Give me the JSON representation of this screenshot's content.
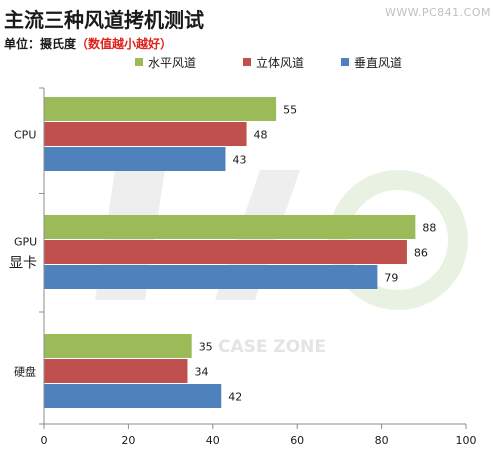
{
  "header": {
    "title": "主流三种风道拷机测试",
    "watermark_url": "WWW.PC841.COM",
    "subtitle_prefix": "单位：摄氏度",
    "subtitle_note": "（数值越小越好）"
  },
  "watermark": {
    "text": "CASE ZONE"
  },
  "colors": {
    "horizontal": "#9bbb59",
    "vertical": "#c0504d",
    "topdown": "#4f81bd",
    "subtitle_note": "#e0201b"
  },
  "chart_data": {
    "type": "bar",
    "orientation": "horizontal",
    "title": "主流三种风道拷机测试",
    "subtitle": "单位：摄氏度（数值越小越好）",
    "categories": [
      "CPU",
      "GPU\n显卡",
      "硬盘"
    ],
    "series": [
      {
        "name": "水平风道",
        "color": "#9bbb59",
        "values": [
          55,
          88,
          35
        ]
      },
      {
        "name": "立体风道",
        "color": "#c0504d",
        "values": [
          48,
          86,
          34
        ]
      },
      {
        "name": "垂直风道",
        "color": "#4f81bd",
        "values": [
          43,
          79,
          42
        ]
      }
    ],
    "xlim": [
      0,
      100
    ],
    "xticks": [
      0,
      20,
      40,
      60,
      80,
      100
    ],
    "grid": false,
    "legend_position": "top-right"
  }
}
